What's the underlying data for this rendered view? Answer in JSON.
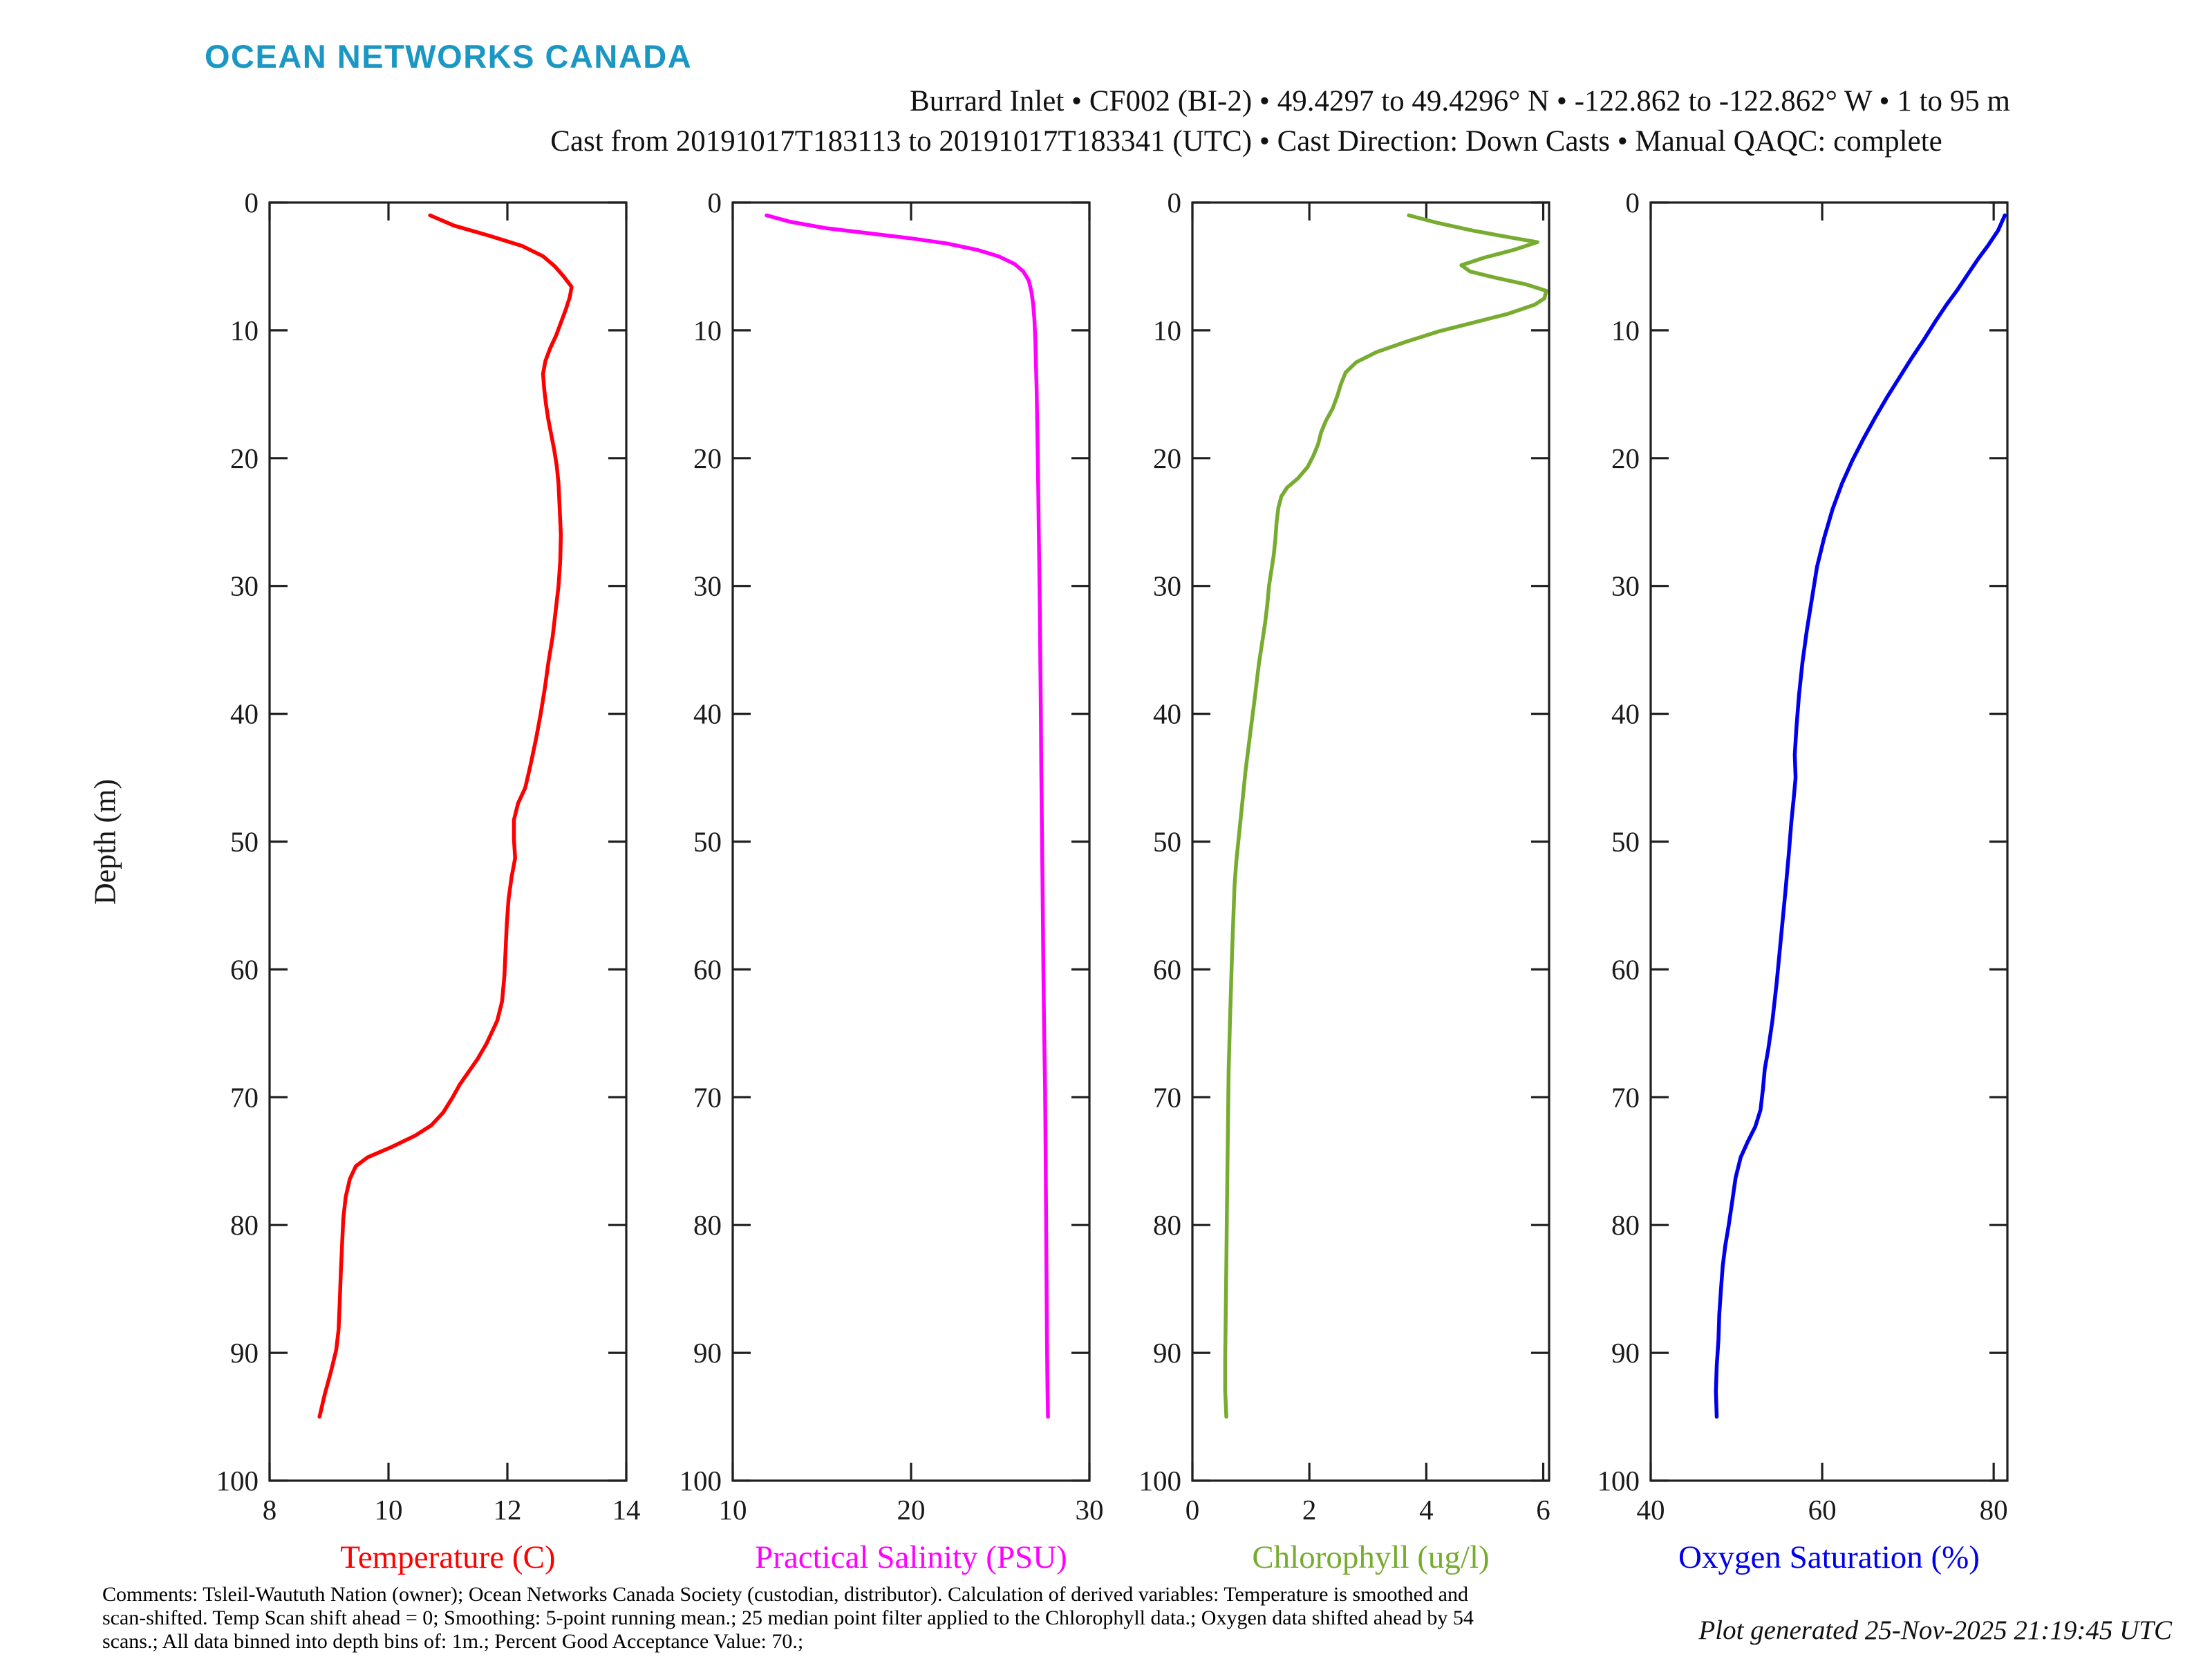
{
  "header": {
    "logo": "OCEAN NETWORKS CANADA",
    "logo_color": "#1b97c4",
    "title_line1": "Burrard Inlet • CF002 (BI-2) • 49.4297 to 49.4296° N • -122.862 to -122.862° W • 1 to 95 m",
    "title_line2": "Cast from 20191017T183113 to 20191017T183341 (UTC) • Cast Direction: Down Casts • Manual QAQC: complete"
  },
  "ylabel": "Depth (m)",
  "axis_color": "#1f1f1f",
  "chart_data": [
    {
      "type": "line",
      "xlabel": "Temperature (C)",
      "color": "#ff0000",
      "xlim": [
        8,
        14
      ],
      "xticks": [
        8,
        10,
        12,
        14
      ],
      "ylim": [
        0,
        100
      ],
      "yticks": [
        0,
        10,
        20,
        30,
        40,
        50,
        60,
        70,
        80,
        90,
        100
      ],
      "ylabel": "Depth (m)",
      "points": [
        [
          10.7,
          1
        ],
        [
          11.1,
          1.8
        ],
        [
          11.7,
          2.6
        ],
        [
          12.25,
          3.4
        ],
        [
          12.6,
          4.2
        ],
        [
          12.8,
          5
        ],
        [
          12.95,
          5.8
        ],
        [
          13.08,
          6.6
        ],
        [
          13.05,
          7.4
        ],
        [
          12.98,
          8.4
        ],
        [
          12.9,
          9.4
        ],
        [
          12.82,
          10.4
        ],
        [
          12.72,
          11.4
        ],
        [
          12.64,
          12.4
        ],
        [
          12.6,
          13.4
        ],
        [
          12.62,
          14.6
        ],
        [
          12.65,
          15.8
        ],
        [
          12.69,
          17
        ],
        [
          12.74,
          18.2
        ],
        [
          12.79,
          19.4
        ],
        [
          12.83,
          20.6
        ],
        [
          12.86,
          22
        ],
        [
          12.88,
          24
        ],
        [
          12.9,
          26
        ],
        [
          12.89,
          28
        ],
        [
          12.86,
          30
        ],
        [
          12.81,
          32
        ],
        [
          12.76,
          34
        ],
        [
          12.69,
          36
        ],
        [
          12.63,
          38
        ],
        [
          12.56,
          40
        ],
        [
          12.48,
          42
        ],
        [
          12.39,
          44
        ],
        [
          12.3,
          45.8
        ],
        [
          12.18,
          47
        ],
        [
          12.11,
          48.3
        ],
        [
          12.11,
          49.8
        ],
        [
          12.13,
          51.3
        ],
        [
          12.07,
          52.8
        ],
        [
          12.02,
          54.5
        ],
        [
          11.99,
          56.5
        ],
        [
          11.97,
          58.5
        ],
        [
          11.95,
          60.5
        ],
        [
          11.91,
          62.5
        ],
        [
          11.83,
          64
        ],
        [
          11.65,
          65.8
        ],
        [
          11.5,
          67
        ],
        [
          11.35,
          68
        ],
        [
          11.2,
          69
        ],
        [
          11.08,
          70
        ],
        [
          10.92,
          71.2
        ],
        [
          10.72,
          72.2
        ],
        [
          10.45,
          73
        ],
        [
          10.05,
          73.9
        ],
        [
          9.65,
          74.7
        ],
        [
          9.45,
          75.4
        ],
        [
          9.35,
          76.4
        ],
        [
          9.28,
          77.8
        ],
        [
          9.24,
          79.5
        ],
        [
          9.22,
          81.5
        ],
        [
          9.2,
          83.5
        ],
        [
          9.18,
          86
        ],
        [
          9.16,
          88.2
        ],
        [
          9.12,
          89.8
        ],
        [
          9.03,
          91.5
        ],
        [
          8.93,
          93.2
        ],
        [
          8.84,
          95
        ]
      ]
    },
    {
      "type": "line",
      "xlabel": "Practical Salinity (PSU)",
      "color": "#ff00ff",
      "xlim": [
        10,
        30
      ],
      "xticks": [
        10,
        20,
        30
      ],
      "ylim": [
        0,
        100
      ],
      "yticks": [
        0,
        10,
        20,
        30,
        40,
        50,
        60,
        70,
        80,
        90,
        100
      ],
      "ylabel": "Depth (m)",
      "points": [
        [
          11.9,
          1
        ],
        [
          13.2,
          1.5
        ],
        [
          15.2,
          2
        ],
        [
          17.6,
          2.4
        ],
        [
          20,
          2.8
        ],
        [
          22,
          3.2
        ],
        [
          23.7,
          3.7
        ],
        [
          24.9,
          4.2
        ],
        [
          25.8,
          4.8
        ],
        [
          26.3,
          5.4
        ],
        [
          26.6,
          6.1
        ],
        [
          26.75,
          7
        ],
        [
          26.85,
          8
        ],
        [
          26.92,
          9.2
        ],
        [
          26.97,
          10.8
        ],
        [
          27.0,
          12.5
        ],
        [
          27.04,
          14.5
        ],
        [
          27.07,
          17
        ],
        [
          27.1,
          19.5
        ],
        [
          27.13,
          22.5
        ],
        [
          27.16,
          25.5
        ],
        [
          27.19,
          28.5
        ],
        [
          27.22,
          32
        ],
        [
          27.25,
          36
        ],
        [
          27.28,
          40
        ],
        [
          27.3,
          44
        ],
        [
          27.33,
          48
        ],
        [
          27.36,
          52
        ],
        [
          27.39,
          56
        ],
        [
          27.42,
          60
        ],
        [
          27.45,
          63.5
        ],
        [
          27.48,
          66.5
        ],
        [
          27.51,
          69
        ],
        [
          27.53,
          72
        ],
        [
          27.55,
          75.5
        ],
        [
          27.57,
          79
        ],
        [
          27.59,
          83
        ],
        [
          27.61,
          87
        ],
        [
          27.63,
          90.5
        ],
        [
          27.65,
          93
        ],
        [
          27.68,
          95
        ]
      ]
    },
    {
      "type": "line",
      "xlabel": "Chlorophyll (ug/l)",
      "color": "#77ac30",
      "xlim": [
        0,
        6.1
      ],
      "xticks": [
        0,
        2,
        4,
        6
      ],
      "ylim": [
        0,
        100
      ],
      "yticks": [
        0,
        10,
        20,
        30,
        40,
        50,
        60,
        70,
        80,
        90,
        100
      ],
      "ylabel": "Depth (m)",
      "points": [
        [
          3.7,
          1
        ],
        [
          4.2,
          1.6
        ],
        [
          4.8,
          2.2
        ],
        [
          5.4,
          2.7
        ],
        [
          5.9,
          3.1
        ],
        [
          5.5,
          3.7
        ],
        [
          5.0,
          4.3
        ],
        [
          4.6,
          4.9
        ],
        [
          4.75,
          5.4
        ],
        [
          5.2,
          5.9
        ],
        [
          5.7,
          6.4
        ],
        [
          6.05,
          6.9
        ],
        [
          6.02,
          7.5
        ],
        [
          5.85,
          8
        ],
        [
          5.4,
          8.7
        ],
        [
          4.8,
          9.4
        ],
        [
          4.2,
          10.1
        ],
        [
          3.65,
          10.9
        ],
        [
          3.15,
          11.7
        ],
        [
          2.8,
          12.5
        ],
        [
          2.62,
          13.3
        ],
        [
          2.54,
          14.2
        ],
        [
          2.48,
          15.1
        ],
        [
          2.4,
          16.1
        ],
        [
          2.28,
          17.1
        ],
        [
          2.2,
          18
        ],
        [
          2.15,
          18.9
        ],
        [
          2.07,
          19.8
        ],
        [
          1.97,
          20.7
        ],
        [
          1.8,
          21.6
        ],
        [
          1.62,
          22.3
        ],
        [
          1.52,
          23
        ],
        [
          1.47,
          23.9
        ],
        [
          1.44,
          25
        ],
        [
          1.42,
          26.3
        ],
        [
          1.39,
          27.6
        ],
        [
          1.35,
          28.8
        ],
        [
          1.31,
          30
        ],
        [
          1.28,
          31.5
        ],
        [
          1.24,
          33
        ],
        [
          1.19,
          34.5
        ],
        [
          1.14,
          36
        ],
        [
          1.1,
          37.5
        ],
        [
          1.06,
          39
        ],
        [
          1.01,
          40.8
        ],
        [
          0.96,
          42.6
        ],
        [
          0.91,
          44.4
        ],
        [
          0.87,
          46.2
        ],
        [
          0.83,
          48
        ],
        [
          0.79,
          49.8
        ],
        [
          0.75,
          51.6
        ],
        [
          0.72,
          53.5
        ],
        [
          0.7,
          56
        ],
        [
          0.68,
          58.5
        ],
        [
          0.66,
          61.5
        ],
        [
          0.64,
          64.5
        ],
        [
          0.62,
          68
        ],
        [
          0.61,
          71.5
        ],
        [
          0.6,
          75
        ],
        [
          0.59,
          79
        ],
        [
          0.58,
          83
        ],
        [
          0.57,
          87
        ],
        [
          0.56,
          90.5
        ],
        [
          0.56,
          93
        ],
        [
          0.58,
          95
        ]
      ]
    },
    {
      "type": "line",
      "xlabel": "Oxygen Saturation (%)",
      "color": "#0000ee",
      "xlim": [
        40,
        81.6
      ],
      "xticks": [
        40,
        60,
        80
      ],
      "ylim": [
        0,
        100
      ],
      "yticks": [
        0,
        10,
        20,
        30,
        40,
        50,
        60,
        70,
        80,
        90,
        100
      ],
      "ylabel": "Depth (m)",
      "points": [
        [
          81.3,
          1
        ],
        [
          80.5,
          2.2
        ],
        [
          79.3,
          3.4
        ],
        [
          78.2,
          4.4
        ],
        [
          77,
          5.6
        ],
        [
          75.8,
          6.8
        ],
        [
          74.5,
          8
        ],
        [
          73.2,
          9.3
        ],
        [
          71.8,
          10.8
        ],
        [
          70.4,
          12.2
        ],
        [
          69,
          13.7
        ],
        [
          67.6,
          15.2
        ],
        [
          66.2,
          16.8
        ],
        [
          64.8,
          18.5
        ],
        [
          63.5,
          20.2
        ],
        [
          62.3,
          22
        ],
        [
          61.2,
          24
        ],
        [
          60.2,
          26.3
        ],
        [
          59.4,
          28.5
        ],
        [
          58.8,
          31
        ],
        [
          58.2,
          33.5
        ],
        [
          57.7,
          36
        ],
        [
          57.3,
          38.5
        ],
        [
          57,
          41
        ],
        [
          56.8,
          43.2
        ],
        [
          56.9,
          45
        ],
        [
          56.7,
          46.5
        ],
        [
          56.4,
          48.5
        ],
        [
          56.1,
          51
        ],
        [
          55.7,
          54
        ],
        [
          55.2,
          57.5
        ],
        [
          54.7,
          61
        ],
        [
          54.2,
          64
        ],
        [
          53.7,
          66.3
        ],
        [
          53.3,
          67.8
        ],
        [
          53.1,
          69.3
        ],
        [
          52.8,
          71
        ],
        [
          52.2,
          72.3
        ],
        [
          51.3,
          73.5
        ],
        [
          50.5,
          74.7
        ],
        [
          49.9,
          76.3
        ],
        [
          49.5,
          78.2
        ],
        [
          49.1,
          80
        ],
        [
          48.7,
          81.6
        ],
        [
          48.4,
          83.2
        ],
        [
          48.2,
          85
        ],
        [
          48,
          87
        ],
        [
          47.9,
          89
        ],
        [
          47.7,
          91
        ],
        [
          47.6,
          93
        ],
        [
          47.7,
          95
        ]
      ]
    }
  ],
  "footer": {
    "comments_lines": [
      "Comments: Tsleil-Waututh Nation (owner); Ocean Networks Canada Society (custodian, distributor). Calculation of derived variables: Temperature is smoothed and",
      "scan-shifted. Temp Scan shift ahead = 0; Smoothing: 5-point running mean.; 25 median point filter applied to the Chlorophyll data.; Oxygen data shifted ahead by 54",
      "scans.; All data binned into depth bins of: 1m.; Percent Good Acceptance Value: 70.;"
    ],
    "generated": "Plot generated 25-Nov-2025 21:19:45 UTC"
  }
}
